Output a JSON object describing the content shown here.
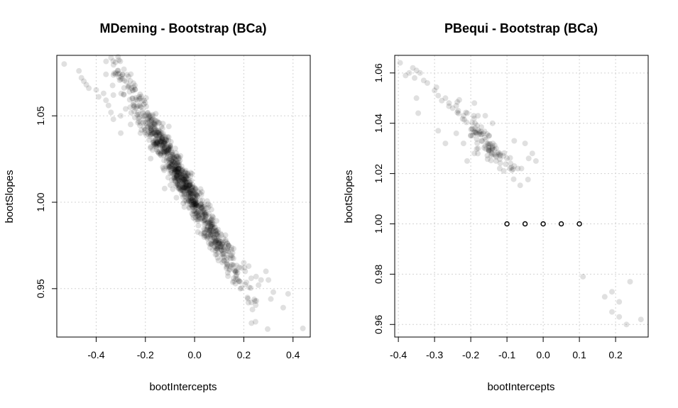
{
  "figure": {
    "background": "#ffffff",
    "point_color": "#000000",
    "grid_color": "#d3d3d3"
  },
  "chart_data": [
    {
      "type": "scatter",
      "title": "MDeming - Bootstrap (BCa)",
      "xlabel": "bootIntercepts",
      "ylabel": "bootSlopes",
      "xlim": [
        -0.56,
        0.47
      ],
      "ylim": [
        0.922,
        1.085
      ],
      "xticks": [
        -0.4,
        -0.2,
        0.0,
        0.2,
        0.4
      ],
      "xtick_labels": [
        "-0.4",
        "-0.2",
        "0.0",
        "0.2",
        "0.4"
      ],
      "yticks": [
        0.95,
        1.0,
        1.05
      ],
      "ytick_labels": [
        "0.95",
        "1.00",
        "1.05"
      ],
      "grid": true,
      "legend": "none",
      "point_alpha": 0.12,
      "n_points": 999,
      "trend": {
        "slope": -0.2435,
        "intercept": 1.0004
      },
      "points": [
        [
          -0.53,
          1.08
        ],
        [
          -0.47,
          1.076
        ],
        [
          -0.46,
          1.072
        ],
        [
          -0.45,
          1.07
        ],
        [
          -0.44,
          1.068
        ],
        [
          -0.43,
          1.066
        ],
        [
          -0.4,
          1.065
        ],
        [
          -0.36,
          1.074
        ],
        [
          -0.39,
          1.061
        ],
        [
          -0.37,
          1.063
        ],
        [
          -0.36,
          1.059
        ],
        [
          -0.35,
          1.056
        ],
        [
          -0.33,
          1.062
        ],
        [
          -0.34,
          1.052
        ],
        [
          -0.33,
          1.048
        ],
        [
          -0.3,
          1.05
        ],
        [
          -0.28,
          1.054
        ],
        [
          -0.3,
          1.04
        ],
        [
          -0.26,
          1.045
        ],
        [
          -0.22,
          1.04
        ],
        [
          0.17,
          0.958
        ],
        [
          0.19,
          0.962
        ],
        [
          0.2,
          0.965
        ],
        [
          0.22,
          0.963
        ],
        [
          0.23,
          0.956
        ],
        [
          0.25,
          0.957
        ],
        [
          0.26,
          0.952
        ],
        [
          0.27,
          0.955
        ],
        [
          0.29,
          0.96
        ],
        [
          0.3,
          0.955
        ],
        [
          0.31,
          0.944
        ],
        [
          0.32,
          0.948
        ],
        [
          0.36,
          0.939
        ],
        [
          0.38,
          0.947
        ],
        [
          0.44,
          0.927
        ]
      ]
    },
    {
      "type": "scatter",
      "title": "PBequi - Bootstrap (BCa)",
      "xlabel": "bootIntercepts",
      "ylabel": "bootSlopes",
      "xlim": [
        -0.41,
        0.29
      ],
      "ylim": [
        0.955,
        1.067
      ],
      "xticks": [
        -0.4,
        -0.3,
        -0.2,
        -0.1,
        0.0,
        0.1,
        0.2
      ],
      "xtick_labels": [
        "-0.4",
        "-0.3",
        "-0.2",
        "-0.1",
        "0.0",
        "0.1",
        "0.2"
      ],
      "yticks": [
        0.96,
        0.98,
        1.0,
        1.02,
        1.04,
        1.06
      ],
      "ytick_labels": [
        "0.96",
        "0.98",
        "1.00",
        "1.02",
        "1.04",
        "1.06"
      ],
      "grid": true,
      "legend": "none",
      "point_alpha": 0.12,
      "trend": {
        "slope": -0.153,
        "intercept": 1.0082
      },
      "hollow_points": [
        {
          "x": -0.1,
          "y": 1.0
        },
        {
          "x": -0.05,
          "y": 1.0
        },
        {
          "x": 0.0,
          "y": 1.0
        },
        {
          "x": 0.05,
          "y": 1.0
        },
        {
          "x": 0.1,
          "y": 1.0
        }
      ],
      "points": [
        [
          -0.395,
          1.064
        ],
        [
          -0.38,
          1.059
        ],
        [
          -0.37,
          1.06
        ],
        [
          -0.36,
          1.062
        ],
        [
          -0.355,
          1.058
        ],
        [
          -0.35,
          1.061
        ],
        [
          -0.34,
          1.06
        ],
        [
          -0.33,
          1.057
        ],
        [
          -0.35,
          1.05
        ],
        [
          -0.345,
          1.044
        ],
        [
          -0.32,
          1.056
        ],
        [
          -0.3,
          1.053
        ],
        [
          -0.29,
          1.051
        ],
        [
          -0.28,
          1.049
        ],
        [
          -0.27,
          1.05
        ],
        [
          -0.26,
          1.048
        ],
        [
          -0.25,
          1.046
        ],
        [
          -0.24,
          1.047
        ],
        [
          -0.235,
          1.045
        ],
        [
          -0.22,
          1.043
        ],
        [
          -0.21,
          1.044
        ],
        [
          -0.19,
          1.048
        ],
        [
          -0.18,
          1.043
        ],
        [
          -0.16,
          1.043
        ],
        [
          -0.14,
          1.04
        ],
        [
          -0.29,
          1.037
        ],
        [
          -0.27,
          1.032
        ],
        [
          -0.24,
          1.036
        ],
        [
          -0.22,
          1.032
        ],
        [
          -0.2,
          1.035
        ],
        [
          -0.19,
          1.028
        ],
        [
          -0.21,
          1.025
        ],
        [
          -0.18,
          1.03
        ],
        [
          -0.17,
          1.033
        ],
        [
          -0.16,
          1.031
        ],
        [
          -0.15,
          1.029
        ],
        [
          -0.14,
          1.03
        ],
        [
          -0.13,
          1.03
        ],
        [
          -0.12,
          1.028
        ],
        [
          -0.11,
          1.027
        ],
        [
          -0.1,
          1.026
        ],
        [
          -0.09,
          1.024
        ],
        [
          -0.08,
          1.023
        ],
        [
          -0.07,
          1.022
        ],
        [
          -0.12,
          1.022
        ],
        [
          -0.13,
          1.025
        ],
        [
          -0.06,
          1.022
        ],
        [
          -0.04,
          1.026
        ],
        [
          -0.03,
          1.028
        ],
        [
          -0.02,
          1.025
        ],
        [
          -0.05,
          1.032
        ],
        [
          -0.08,
          1.033
        ],
        [
          0.11,
          0.979
        ],
        [
          0.17,
          0.971
        ],
        [
          0.19,
          0.973
        ],
        [
          0.19,
          0.965
        ],
        [
          0.21,
          0.969
        ],
        [
          0.21,
          0.963
        ],
        [
          0.23,
          0.96
        ],
        [
          0.24,
          0.977
        ],
        [
          0.27,
          0.962
        ]
      ]
    }
  ]
}
